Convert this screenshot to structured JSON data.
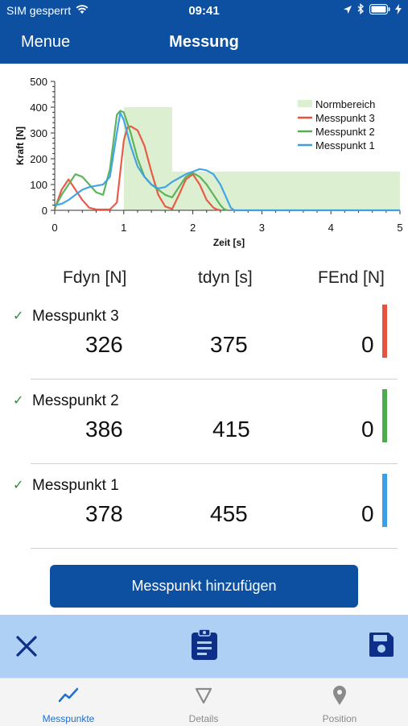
{
  "status": {
    "carrier": "SIM gesperrt",
    "time": "09:41"
  },
  "nav": {
    "menu_label": "Menue",
    "title": "Messung"
  },
  "chart_data": {
    "type": "line",
    "xlabel": "Zeit [s]",
    "ylabel": "Kraft [N]",
    "xlim": [
      0,
      5
    ],
    "ylim": [
      0,
      500
    ],
    "xticks": [
      "0",
      "1",
      "2",
      "3",
      "4",
      "5"
    ],
    "yticks": [
      "0",
      "100",
      "200",
      "300",
      "400",
      "500"
    ],
    "legend_position": "top-right",
    "norm_region": {
      "name": "Normbereich",
      "color": "#dcefd0",
      "bands": [
        {
          "x": [
            1.0,
            1.7
          ],
          "y": [
            0,
            400
          ]
        },
        {
          "x": [
            1.7,
            5.0
          ],
          "y": [
            0,
            150
          ]
        }
      ]
    },
    "series": [
      {
        "name": "Messpunkt 3",
        "color": "#e8533f",
        "x": [
          0,
          0.1,
          0.2,
          0.3,
          0.4,
          0.5,
          0.6,
          0.7,
          0.8,
          0.9,
          1.0,
          1.05,
          1.1,
          1.2,
          1.3,
          1.4,
          1.5,
          1.6,
          1.7,
          1.8,
          1.9,
          2.0,
          2.1,
          2.2,
          2.3,
          2.35,
          2.4
        ],
        "y": [
          5,
          80,
          120,
          80,
          40,
          10,
          3,
          3,
          3,
          30,
          270,
          320,
          326,
          310,
          250,
          150,
          60,
          15,
          5,
          60,
          120,
          140,
          100,
          40,
          10,
          3,
          0
        ]
      },
      {
        "name": "Messpunkt 2",
        "color": "#55b055",
        "x": [
          0,
          0.1,
          0.2,
          0.3,
          0.4,
          0.5,
          0.6,
          0.7,
          0.8,
          0.9,
          0.95,
          1.0,
          1.1,
          1.2,
          1.3,
          1.4,
          1.5,
          1.6,
          1.7,
          1.8,
          1.9,
          2.0,
          2.1,
          2.2,
          2.3,
          2.4,
          2.45,
          2.5
        ],
        "y": [
          10,
          60,
          100,
          140,
          130,
          100,
          70,
          60,
          160,
          370,
          386,
          380,
          300,
          200,
          130,
          100,
          80,
          60,
          50,
          90,
          130,
          145,
          130,
          100,
          60,
          20,
          5,
          0
        ]
      },
      {
        "name": "Messpunkt 1",
        "color": "#3aa0e6",
        "x": [
          0,
          0.1,
          0.2,
          0.3,
          0.4,
          0.5,
          0.6,
          0.7,
          0.8,
          0.9,
          0.95,
          1.0,
          1.1,
          1.2,
          1.3,
          1.4,
          1.5,
          1.6,
          1.7,
          1.8,
          1.9,
          2.0,
          2.1,
          2.2,
          2.3,
          2.4,
          2.5,
          2.55,
          2.6,
          3.0,
          5.0
        ],
        "y": [
          20,
          25,
          40,
          60,
          80,
          90,
          95,
          100,
          130,
          300,
          378,
          350,
          250,
          170,
          130,
          100,
          85,
          90,
          110,
          125,
          140,
          150,
          160,
          155,
          140,
          100,
          40,
          10,
          0,
          0,
          0
        ]
      }
    ]
  },
  "table": {
    "headers": [
      "Fdyn [N]",
      "tdyn [s]",
      "FEnd [N]"
    ],
    "rows": [
      {
        "name": "Messpunkt 3",
        "fdyn": "326",
        "tdyn": "375",
        "fend": "0",
        "color": "#e8533f"
      },
      {
        "name": "Messpunkt 2",
        "fdyn": "386",
        "tdyn": "415",
        "fend": "0",
        "color": "#4fab4f"
      },
      {
        "name": "Messpunkt 1",
        "fdyn": "378",
        "tdyn": "455",
        "fend": "0",
        "color": "#3aa0e6"
      }
    ]
  },
  "add_button": {
    "label": "Messpunkt hinzufügen"
  },
  "toolbar": {
    "icons": [
      "close-icon",
      "clipboard-icon",
      "save-icon"
    ]
  },
  "tabs": [
    {
      "label": "Messpunkte",
      "icon": "line-chart-icon",
      "active": true
    },
    {
      "label": "Details",
      "icon": "triangle-icon",
      "active": false
    },
    {
      "label": "Position",
      "icon": "location-pin-icon",
      "active": false
    }
  ],
  "colors": {
    "brand": "#0d4fa0",
    "toolbar_bg": "#aed0f5",
    "check": "#2e8b3a"
  }
}
